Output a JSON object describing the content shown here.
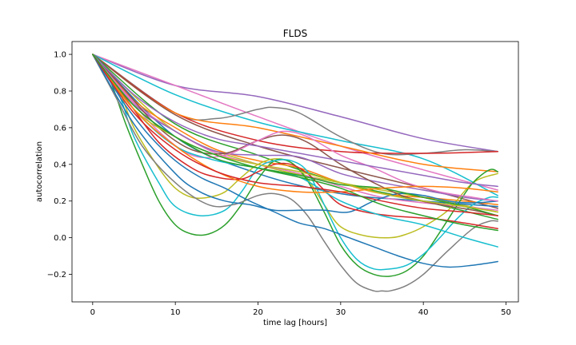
{
  "chart_data": {
    "type": "line",
    "title": "FLDS",
    "xlabel": "time lag [hours]",
    "ylabel": "autocorrelation",
    "xlim": [
      -2.5,
      51.5
    ],
    "ylim": [
      -0.35,
      1.07
    ],
    "xticks": [
      0,
      10,
      20,
      30,
      40,
      50
    ],
    "xtick_labels": [
      "0",
      "10",
      "20",
      "30",
      "40",
      "50"
    ],
    "yticks": [
      -0.2,
      0.0,
      0.2,
      0.4,
      0.6,
      0.8,
      1.0
    ],
    "ytick_labels": [
      "−0.2",
      "0.0",
      "0.2",
      "0.4",
      "0.6",
      "0.8",
      "1.0"
    ],
    "grid": false,
    "series": [
      {
        "color": "#9467bd",
        "x": [
          0,
          10,
          20,
          30,
          40,
          49
        ],
        "y": [
          1.0,
          0.83,
          0.77,
          0.66,
          0.54,
          0.47
        ]
      },
      {
        "color": "#e377c2",
        "x": [
          0,
          10,
          20,
          30,
          40,
          49
        ],
        "y": [
          1.0,
          0.83,
          0.66,
          0.5,
          0.37,
          0.26
        ]
      },
      {
        "color": "#17becf",
        "x": [
          0,
          10,
          20,
          30,
          40,
          49
        ],
        "y": [
          1.0,
          0.78,
          0.63,
          0.53,
          0.43,
          0.23
        ]
      },
      {
        "color": "#7f7f7f",
        "x": [
          0,
          10,
          15,
          20,
          22,
          25,
          30,
          35,
          40,
          45,
          49
        ],
        "y": [
          1.0,
          0.68,
          0.65,
          0.7,
          0.71,
          0.68,
          0.55,
          0.46,
          0.46,
          0.48,
          0.47
        ]
      },
      {
        "color": "#d62728",
        "x": [
          0,
          10,
          20,
          30,
          40,
          49
        ],
        "y": [
          1.0,
          0.68,
          0.53,
          0.47,
          0.46,
          0.47
        ]
      },
      {
        "color": "#ff7f0e",
        "x": [
          0,
          10,
          20,
          30,
          40,
          49
        ],
        "y": [
          1.0,
          0.68,
          0.6,
          0.5,
          0.4,
          0.36
        ]
      },
      {
        "color": "#8c564b",
        "x": [
          0,
          10,
          20,
          30,
          40,
          49
        ],
        "y": [
          1.0,
          0.67,
          0.5,
          0.38,
          0.27,
          0.16
        ]
      },
      {
        "color": "#bcbd22",
        "x": [
          0,
          10,
          20,
          30,
          40,
          49
        ],
        "y": [
          1.0,
          0.58,
          0.4,
          0.3,
          0.22,
          0.14
        ]
      },
      {
        "color": "#2ca02c",
        "x": [
          0,
          10,
          20,
          30,
          40,
          49
        ],
        "y": [
          1.0,
          0.62,
          0.45,
          0.3,
          0.2,
          0.1
        ]
      },
      {
        "color": "#1f77b4",
        "x": [
          0,
          10,
          20,
          30,
          40,
          49
        ],
        "y": [
          1.0,
          0.55,
          0.35,
          0.24,
          0.2,
          0.17
        ]
      },
      {
        "color": "#ff7f0e",
        "x": [
          0,
          5,
          10,
          15,
          20,
          25,
          30,
          35,
          40,
          45,
          49
        ],
        "y": [
          1.0,
          0.75,
          0.6,
          0.48,
          0.42,
          0.38,
          0.3,
          0.24,
          0.22,
          0.2,
          0.18
        ]
      },
      {
        "color": "#e377c2",
        "x": [
          0,
          5,
          10,
          15,
          20,
          25,
          30,
          35,
          40,
          45,
          49
        ],
        "y": [
          1.0,
          0.74,
          0.58,
          0.46,
          0.4,
          0.35,
          0.28,
          0.22,
          0.19,
          0.17,
          0.15
        ]
      },
      {
        "color": "#9467bd",
        "x": [
          0,
          5,
          10,
          15,
          20,
          25,
          30,
          35,
          40,
          45,
          49
        ],
        "y": [
          1.0,
          0.73,
          0.58,
          0.47,
          0.45,
          0.44,
          0.35,
          0.3,
          0.26,
          0.22,
          0.2
        ]
      },
      {
        "color": "#bcbd22",
        "x": [
          0,
          3,
          5,
          8,
          10,
          12,
          14,
          16,
          18,
          20,
          22,
          24,
          26,
          28,
          30,
          33,
          36,
          38,
          40,
          43,
          46,
          49
        ],
        "y": [
          1.0,
          0.82,
          0.6,
          0.38,
          0.27,
          0.22,
          0.22,
          0.25,
          0.33,
          0.4,
          0.43,
          0.41,
          0.32,
          0.18,
          0.06,
          0.01,
          0.0,
          0.02,
          0.06,
          0.15,
          0.3,
          0.35
        ]
      },
      {
        "color": "#2ca02c",
        "x": [
          0,
          2,
          4,
          6,
          8,
          10,
          12,
          14,
          16,
          18,
          20,
          22,
          24,
          26,
          28,
          30,
          32,
          34,
          36,
          38,
          40,
          42,
          44,
          46,
          48,
          49
        ],
        "y": [
          1.0,
          0.87,
          0.62,
          0.4,
          0.2,
          0.07,
          0.02,
          0.02,
          0.07,
          0.18,
          0.32,
          0.42,
          0.41,
          0.31,
          0.14,
          -0.04,
          -0.15,
          -0.2,
          -0.21,
          -0.18,
          -0.1,
          0.03,
          0.17,
          0.3,
          0.37,
          0.36
        ]
      },
      {
        "color": "#17becf",
        "x": [
          0,
          3,
          5,
          8,
          10,
          13,
          16,
          18,
          20,
          22,
          24,
          26,
          28,
          30,
          32,
          34,
          36,
          38,
          40,
          42,
          44,
          46,
          48,
          49
        ],
        "y": [
          1.0,
          0.8,
          0.55,
          0.3,
          0.17,
          0.12,
          0.15,
          0.25,
          0.38,
          0.42,
          0.42,
          0.36,
          0.18,
          0.0,
          -0.12,
          -0.17,
          -0.17,
          -0.15,
          -0.09,
          0.0,
          0.1,
          0.18,
          0.22,
          0.22
        ]
      },
      {
        "color": "#7f7f7f",
        "x": [
          0,
          3,
          6,
          10,
          14,
          17,
          20,
          22,
          24,
          26,
          28,
          30,
          32,
          34,
          35,
          36,
          38,
          40,
          43,
          46,
          48,
          49
        ],
        "y": [
          1.0,
          0.75,
          0.5,
          0.3,
          0.18,
          0.18,
          0.23,
          0.24,
          0.21,
          0.12,
          -0.02,
          -0.15,
          -0.25,
          -0.29,
          -0.29,
          -0.29,
          -0.26,
          -0.2,
          -0.07,
          0.05,
          0.09,
          0.09
        ]
      },
      {
        "color": "#1f77b4",
        "x": [
          0,
          2,
          4,
          7,
          10,
          13,
          16,
          19,
          22,
          25,
          28,
          31,
          34,
          37,
          40,
          43,
          46,
          49
        ],
        "y": [
          1.0,
          0.86,
          0.72,
          0.55,
          0.42,
          0.33,
          0.27,
          0.2,
          0.14,
          0.08,
          0.05,
          0.0,
          -0.05,
          -0.1,
          -0.14,
          -0.16,
          -0.15,
          -0.13
        ]
      },
      {
        "color": "#1f77b4",
        "x": [
          0,
          5,
          10,
          13,
          16,
          19,
          22,
          25,
          28,
          31,
          34,
          37,
          40,
          43,
          46,
          49
        ],
        "y": [
          1.0,
          0.62,
          0.35,
          0.25,
          0.2,
          0.18,
          0.15,
          0.15,
          0.15,
          0.14,
          0.2,
          0.24,
          0.23,
          0.2,
          0.19,
          0.2
        ]
      },
      {
        "color": "#d62728",
        "x": [
          0,
          4,
          8,
          12,
          15,
          18,
          20,
          22,
          24,
          26,
          28,
          30,
          33,
          36,
          39,
          42,
          45,
          49
        ],
        "y": [
          1.0,
          0.76,
          0.52,
          0.38,
          0.33,
          0.32,
          0.36,
          0.4,
          0.4,
          0.35,
          0.26,
          0.18,
          0.14,
          0.12,
          0.11,
          0.1,
          0.08,
          0.05
        ]
      },
      {
        "color": "#8c564b",
        "x": [
          0,
          4,
          8,
          12,
          16,
          20,
          23,
          26,
          30,
          34,
          38,
          42,
          46,
          49
        ],
        "y": [
          1.0,
          0.8,
          0.6,
          0.48,
          0.46,
          0.53,
          0.56,
          0.52,
          0.4,
          0.3,
          0.22,
          0.18,
          0.15,
          0.12
        ]
      },
      {
        "color": "#e377c2",
        "x": [
          0,
          4,
          8,
          12,
          16,
          20,
          23,
          26,
          30,
          34,
          38,
          42,
          46,
          49
        ],
        "y": [
          1.0,
          0.78,
          0.58,
          0.45,
          0.45,
          0.53,
          0.58,
          0.55,
          0.45,
          0.38,
          0.3,
          0.25,
          0.22,
          0.2
        ]
      },
      {
        "color": "#17becf",
        "x": [
          0,
          5,
          10,
          15,
          20,
          25,
          30,
          35,
          40,
          45,
          49
        ],
        "y": [
          1.0,
          0.7,
          0.5,
          0.42,
          0.38,
          0.33,
          0.2,
          0.12,
          0.07,
          0.0,
          -0.05
        ]
      },
      {
        "color": "#2ca02c",
        "x": [
          0,
          5,
          10,
          15,
          20,
          25,
          30,
          35,
          40,
          45,
          49
        ],
        "y": [
          1.0,
          0.72,
          0.55,
          0.43,
          0.38,
          0.34,
          0.29,
          0.27,
          0.22,
          0.17,
          0.12
        ]
      },
      {
        "color": "#bcbd22",
        "x": [
          0,
          5,
          10,
          15,
          20,
          25,
          30,
          35,
          40,
          45,
          49
        ],
        "y": [
          1.0,
          0.7,
          0.55,
          0.45,
          0.4,
          0.36,
          0.3,
          0.24,
          0.2,
          0.17,
          0.14
        ]
      },
      {
        "color": "#9467bd",
        "x": [
          0,
          5,
          10,
          15,
          20,
          25,
          30,
          35,
          40,
          45,
          49
        ],
        "y": [
          1.0,
          0.78,
          0.63,
          0.54,
          0.5,
          0.46,
          0.42,
          0.38,
          0.34,
          0.3,
          0.28
        ]
      },
      {
        "color": "#ff7f0e",
        "x": [
          0,
          5,
          10,
          15,
          20,
          25,
          30,
          35,
          40,
          45,
          49
        ],
        "y": [
          1.0,
          0.7,
          0.5,
          0.36,
          0.28,
          0.25,
          0.25,
          0.27,
          0.28,
          0.27,
          0.25
        ]
      },
      {
        "color": "#d62728",
        "x": [
          0,
          5,
          10,
          15,
          20,
          25,
          30,
          35,
          40,
          45,
          49
        ],
        "y": [
          1.0,
          0.68,
          0.48,
          0.36,
          0.3,
          0.28,
          0.25,
          0.2,
          0.16,
          0.14,
          0.12
        ]
      },
      {
        "color": "#2ca02c",
        "x": [
          0,
          5,
          10,
          15,
          20,
          25,
          30,
          35,
          40,
          45,
          49
        ],
        "y": [
          1.0,
          0.72,
          0.55,
          0.45,
          0.38,
          0.33,
          0.27,
          0.18,
          0.12,
          0.07,
          0.04
        ]
      }
    ]
  }
}
